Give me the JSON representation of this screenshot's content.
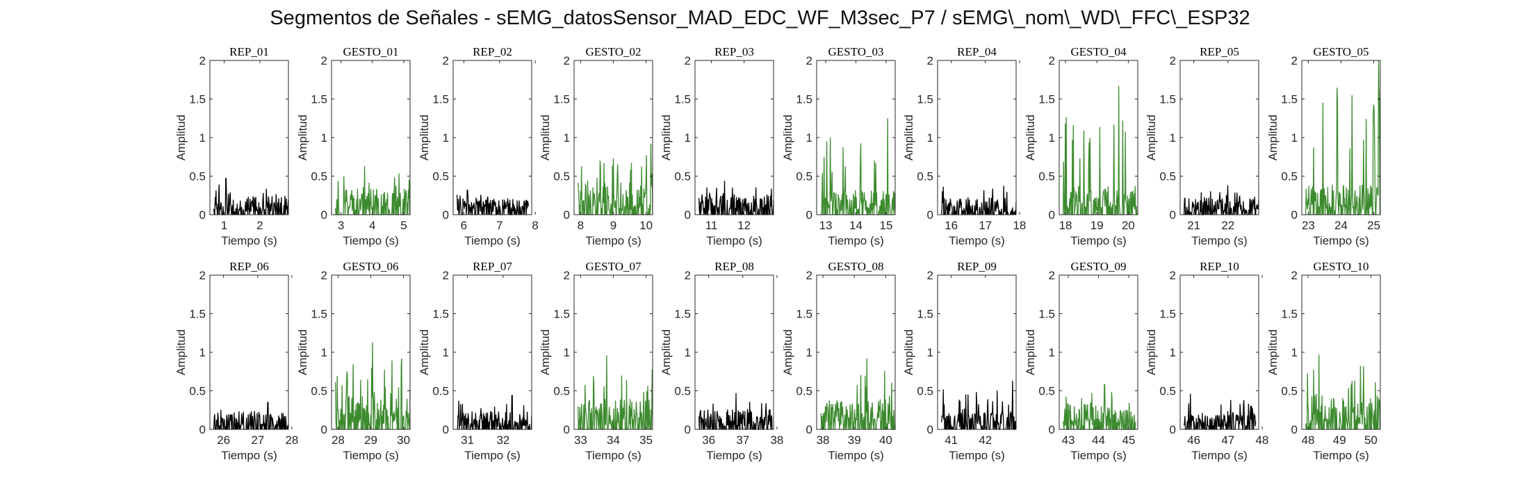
{
  "title": "Segmentos de Señales - sEMG_datosSensor_MAD_EDC_WF_M3sec_P7 / sEMG\\_nom\\_WD\\_FFC\\_ESP32",
  "colors": {
    "rest": "#000000",
    "gesture": "#3c8a2e",
    "axes": "#262626"
  },
  "chart_data": {
    "type": "line",
    "title": "Segmentos de Señales - sEMG_datosSensor_MAD_EDC_WF_M3sec_P7 / sEMG\\_nom\\_WD\\_FFC\\_ESP32",
    "xlabel": "Tiempo (s)",
    "ylabel": "Amplitud",
    "ylim": [
      0,
      2
    ],
    "yticks": [
      0,
      0.5,
      1,
      1.5,
      2
    ],
    "ytick_labels": [
      "0",
      "0.5",
      "1",
      "1.5",
      "2"
    ],
    "grid": false,
    "legend": "none",
    "panels": [
      {
        "title": "REP_01",
        "kind": "rest",
        "xlim": [
          0.6,
          2.8
        ],
        "xticks": [
          1,
          2
        ],
        "duration": 2.1,
        "mean": 0.11,
        "max": 0.47,
        "max_at": 1.05
      },
      {
        "title": "GESTO_01",
        "kind": "gesture",
        "xlim": [
          2.7,
          5.2
        ],
        "xticks": [
          3,
          4,
          5
        ],
        "duration": 2.4,
        "mean": 0.16,
        "max": 0.63,
        "max_at": 3.75
      },
      {
        "title": "REP_02",
        "kind": "rest",
        "xlim": [
          5.7,
          7.9
        ],
        "xticks": [
          6,
          7,
          8
        ],
        "duration": 2.0,
        "mean": 0.1,
        "max": 0.32,
        "max_at": 6.1
      },
      {
        "title": "GESTO_02",
        "kind": "gesture",
        "xlim": [
          7.8,
          10.2
        ],
        "xticks": [
          8,
          9,
          10
        ],
        "duration": 2.4,
        "mean": 0.2,
        "max": 0.92,
        "max_at": 10.15
      },
      {
        "title": "REP_03",
        "kind": "rest",
        "xlim": [
          10.5,
          12.9
        ],
        "xticks": [
          11,
          12
        ],
        "duration": 2.3,
        "mean": 0.12,
        "max": 0.44,
        "max_at": 11.4
      },
      {
        "title": "GESTO_03",
        "kind": "gesture",
        "xlim": [
          12.7,
          15.3
        ],
        "xticks": [
          13,
          14,
          15
        ],
        "duration": 2.5,
        "mean": 0.15,
        "max": 1.25,
        "max_at": 15.05
      },
      {
        "title": "REP_04",
        "kind": "rest",
        "xlim": [
          15.6,
          17.9
        ],
        "xticks": [
          16,
          17,
          18
        ],
        "duration": 2.2,
        "mean": 0.1,
        "max": 0.45,
        "max_at": 15.7
      },
      {
        "title": "GESTO_04",
        "kind": "gesture",
        "xlim": [
          17.8,
          20.3
        ],
        "xticks": [
          18,
          19,
          20
        ],
        "duration": 2.4,
        "mean": 0.17,
        "max": 1.67,
        "max_at": 19.7
      },
      {
        "title": "REP_05",
        "kind": "rest",
        "xlim": [
          20.6,
          22.9
        ],
        "xticks": [
          21,
          22
        ],
        "duration": 2.2,
        "mean": 0.1,
        "max": 0.38,
        "max_at": 22.0
      },
      {
        "title": "GESTO_05",
        "kind": "gesture",
        "xlim": [
          22.8,
          25.2
        ],
        "xticks": [
          23,
          24,
          25
        ],
        "duration": 2.4,
        "mean": 0.18,
        "max": 2.0,
        "max_at": 25.15
      },
      {
        "title": "REP_06",
        "kind": "rest",
        "xlim": [
          25.6,
          27.9
        ],
        "xticks": [
          26,
          27,
          28
        ],
        "duration": 2.2,
        "mean": 0.1,
        "max": 0.35,
        "max_at": 27.3
      },
      {
        "title": "GESTO_06",
        "kind": "gesture",
        "xlim": [
          27.8,
          30.2
        ],
        "xticks": [
          28,
          29,
          30
        ],
        "duration": 2.4,
        "mean": 0.2,
        "max": 1.13,
        "max_at": 29.05
      },
      {
        "title": "REP_07",
        "kind": "rest",
        "xlim": [
          30.6,
          32.8
        ],
        "xticks": [
          31,
          32
        ],
        "duration": 2.1,
        "mean": 0.11,
        "max": 0.44,
        "max_at": 32.25
      },
      {
        "title": "GESTO_07",
        "kind": "gesture",
        "xlim": [
          32.8,
          35.2
        ],
        "xticks": [
          33,
          34,
          35
        ],
        "duration": 2.4,
        "mean": 0.18,
        "max": 0.96,
        "max_at": 33.8
      },
      {
        "title": "REP_08",
        "kind": "rest",
        "xlim": [
          35.6,
          37.9
        ],
        "xticks": [
          36,
          37,
          38
        ],
        "duration": 2.2,
        "mean": 0.12,
        "max": 0.47,
        "max_at": 36.8
      },
      {
        "title": "GESTO_08",
        "kind": "gesture",
        "xlim": [
          37.8,
          40.3
        ],
        "xticks": [
          38,
          39,
          40
        ],
        "duration": 2.4,
        "mean": 0.18,
        "max": 0.92,
        "max_at": 39.4
      },
      {
        "title": "REP_09",
        "kind": "rest",
        "xlim": [
          40.6,
          42.9
        ],
        "xticks": [
          41,
          42
        ],
        "duration": 2.2,
        "mean": 0.1,
        "max": 0.63,
        "max_at": 42.8
      },
      {
        "title": "GESTO_09",
        "kind": "gesture",
        "xlim": [
          42.7,
          45.3
        ],
        "xticks": [
          43,
          44,
          45
        ],
        "duration": 2.4,
        "mean": 0.15,
        "max": 0.58,
        "max_at": 44.2
      },
      {
        "title": "REP_10",
        "kind": "rest",
        "xlim": [
          45.6,
          47.9
        ],
        "xticks": [
          46,
          47,
          48
        ],
        "duration": 2.1,
        "mean": 0.1,
        "max": 0.46,
        "max_at": 45.9
      },
      {
        "title": "GESTO_10",
        "kind": "gesture",
        "xlim": [
          47.8,
          50.3
        ],
        "xticks": [
          48,
          49,
          50
        ],
        "duration": 2.5,
        "mean": 0.2,
        "max": 0.97,
        "max_at": 48.35
      }
    ]
  }
}
